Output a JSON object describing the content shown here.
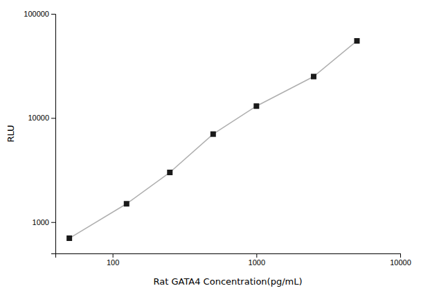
{
  "chart_data": {
    "type": "line",
    "x": [
      50,
      125,
      250,
      500,
      1000,
      2500,
      5000
    ],
    "series": [
      {
        "values": [
          700,
          1500,
          3000,
          7000,
          13000,
          25000,
          55000
        ],
        "color": "#1a1a1a",
        "marker": "square"
      }
    ],
    "xlabel": "Rat GATA4 Concentration(pg/mL)",
    "ylabel": "RLU",
    "xlim": [
      40,
      10000
    ],
    "ylim": [
      500,
      100000
    ],
    "xticks": [
      100,
      1000,
      10000
    ],
    "yticks": [
      1000,
      10000,
      100000
    ],
    "log": true,
    "grid": false
  }
}
